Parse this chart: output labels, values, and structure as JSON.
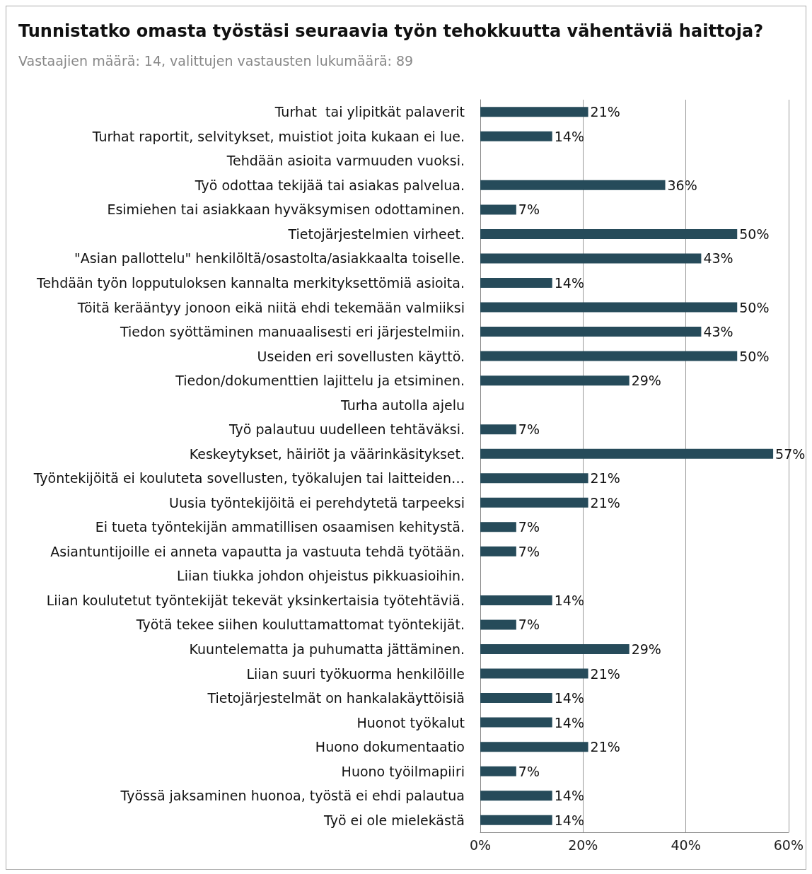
{
  "chart_data": {
    "type": "bar",
    "orientation": "horizontal",
    "title": "Tunnistatko omasta työstäsi seuraavia työn tehokkuutta vähentäviä haittoja?",
    "subtitle": "Vastaajien määrä: 14, valittujen vastausten lukumäärä: 89",
    "categories": [
      "Turhat  tai ylipitkät palaverit",
      "Turhat raportit, selvitykset, muistiot joita kukaan ei lue.",
      "Tehdään asioita varmuuden vuoksi.",
      "Työ odottaa tekijää tai asiakas palvelua.",
      "Esimiehen tai asiakkaan hyväksymisen odottaminen.",
      "Tietojärjestelmien virheet.",
      "\"Asian pallottelu\" henkilöltä/osastolta/asiakkaalta toiselle.",
      "Tehdään työn lopputuloksen kannalta merkityksettömiä asioita.",
      "Töitä kerääntyy jonoon eikä niitä ehdi tekemään valmiiksi",
      "Tiedon syöttäminen manuaalisesti eri järjestelmiin.",
      "Useiden eri sovellusten käyttö.",
      "Tiedon/dokumenttien lajittelu ja etsiminen.",
      "Turha autolla ajelu",
      "Työ palautuu uudelleen tehtäväksi.",
      "Keskeytykset, häiriöt ja väärinkäsitykset.",
      "Työntekijöitä ei kouluteta sovellusten, työkalujen tai laitteiden…",
      "Uusia työntekijöitä ei perehdytetä tarpeeksi",
      "Ei tueta työntekijän ammatillisen osaamisen kehitystä.",
      "Asiantuntijoille ei anneta vapautta ja vastuuta tehdä työtään.",
      "Liian tiukka johdon ohjeistus pikkuasioihin.",
      "Liian koulutetut työntekijät tekevät yksinkertaisia työtehtäviä.",
      "Työtä tekee siihen kouluttamattomat työntekijät.",
      "Kuuntelematta ja puhumatta jättäminen.",
      "Liian suuri työkuorma henkilöille",
      "Tietojärjestelmät on hankalakäyttöisiä",
      "Huonot työkalut",
      "Huono dokumentaatio",
      "Huono työilmapiiri",
      "Työssä jaksaminen huonoa, työstä ei ehdi palautua",
      "Työ ei ole mielekästä"
    ],
    "values": [
      21,
      14,
      0,
      36,
      7,
      50,
      43,
      14,
      50,
      43,
      50,
      29,
      0,
      7,
      57,
      21,
      21,
      7,
      7,
      0,
      14,
      7,
      29,
      21,
      14,
      14,
      21,
      7,
      14,
      14
    ],
    "value_labels": [
      "21%",
      "14%",
      null,
      "36%",
      "7%",
      "50%",
      "43%",
      "14%",
      "50%",
      "43%",
      "50%",
      "29%",
      null,
      "7%",
      "57%",
      "21%",
      "21%",
      "7%",
      "7%",
      null,
      "14%",
      "7%",
      "29%",
      "21%",
      "14%",
      "14%",
      "21%",
      "7%",
      "14%",
      "14%"
    ],
    "color": "#264b5a",
    "xlim": [
      0,
      60
    ],
    "xticks": [
      {
        "value": 0,
        "label": "0%"
      },
      {
        "value": 20,
        "label": "20%"
      },
      {
        "value": 40,
        "label": "40%"
      },
      {
        "value": 60,
        "label": "60%"
      }
    ],
    "grid": "x"
  }
}
